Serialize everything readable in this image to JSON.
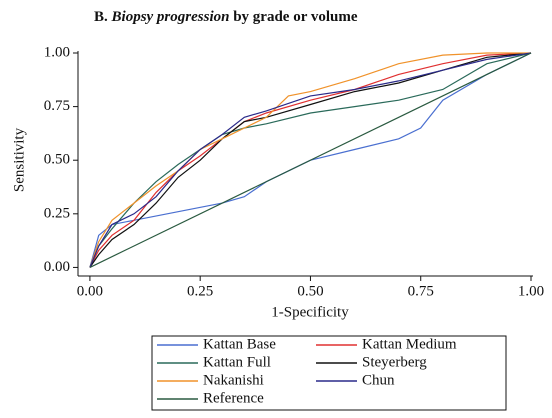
{
  "chart_data": {
    "type": "line",
    "title": [
      "B.",
      "Biopsy progression",
      "by grade or volume"
    ],
    "x_label": "1-Specificity",
    "y_label": "Sensitivity",
    "xlim": [
      -0.027,
      1.0
    ],
    "ylim": [
      -0.04,
      1.0
    ],
    "xticks": [
      {
        "value": 0,
        "label": "0.00"
      },
      {
        "value": 0.25,
        "label": "0.25"
      },
      {
        "value": 0.5,
        "label": "0.50"
      },
      {
        "value": 0.75,
        "label": "0.75"
      },
      {
        "value": 1,
        "label": "1.00"
      }
    ],
    "yticks": [
      {
        "value": 0,
        "label": "0.00"
      },
      {
        "value": 0.25,
        "label": "0.25"
      },
      {
        "value": 0.5,
        "label": "0.50"
      },
      {
        "value": 0.75,
        "label": "0.75"
      },
      {
        "value": 1,
        "label": "1.00"
      }
    ],
    "series": [
      {
        "name": "Kattan Base",
        "color": "#4a6fd0",
        "x": [
          0,
          0.02,
          0.05,
          0.1,
          0.2,
          0.3,
          0.35,
          0.4,
          0.45,
          0.5,
          0.6,
          0.7,
          0.75,
          0.8,
          0.9,
          1
        ],
        "values": [
          0,
          0.15,
          0.2,
          0.22,
          0.26,
          0.3,
          0.33,
          0.4,
          0.45,
          0.5,
          0.55,
          0.6,
          0.65,
          0.78,
          0.9,
          1
        ]
      },
      {
        "name": "Kattan Medium",
        "color": "#e03030",
        "x": [
          0,
          0.02,
          0.05,
          0.1,
          0.15,
          0.2,
          0.25,
          0.3,
          0.35,
          0.4,
          0.5,
          0.6,
          0.7,
          0.8,
          0.9,
          1
        ],
        "values": [
          0,
          0.08,
          0.15,
          0.22,
          0.35,
          0.45,
          0.52,
          0.6,
          0.68,
          0.72,
          0.78,
          0.83,
          0.9,
          0.95,
          0.99,
          1
        ]
      },
      {
        "name": "Kattan Full",
        "color": "#2a6a5a",
        "x": [
          0,
          0.02,
          0.05,
          0.1,
          0.15,
          0.2,
          0.25,
          0.3,
          0.35,
          0.4,
          0.5,
          0.6,
          0.7,
          0.8,
          0.9,
          1
        ],
        "values": [
          0,
          0.1,
          0.18,
          0.3,
          0.4,
          0.48,
          0.55,
          0.62,
          0.65,
          0.67,
          0.72,
          0.75,
          0.78,
          0.83,
          0.95,
          1
        ]
      },
      {
        "name": "Steyerberg",
        "color": "#111111",
        "x": [
          0,
          0.02,
          0.05,
          0.1,
          0.15,
          0.2,
          0.25,
          0.3,
          0.35,
          0.4,
          0.5,
          0.6,
          0.7,
          0.8,
          0.9,
          1
        ],
        "values": [
          0,
          0.06,
          0.13,
          0.2,
          0.3,
          0.42,
          0.5,
          0.6,
          0.68,
          0.7,
          0.76,
          0.82,
          0.86,
          0.92,
          0.98,
          1
        ]
      },
      {
        "name": "Nakanishi",
        "color": "#f0922a",
        "x": [
          0,
          0.02,
          0.05,
          0.1,
          0.15,
          0.2,
          0.25,
          0.3,
          0.4,
          0.45,
          0.5,
          0.6,
          0.7,
          0.8,
          0.9,
          1
        ],
        "values": [
          0,
          0.12,
          0.22,
          0.3,
          0.38,
          0.45,
          0.55,
          0.6,
          0.7,
          0.8,
          0.82,
          0.88,
          0.95,
          0.99,
          1,
          1
        ]
      },
      {
        "name": "Chun",
        "color": "#2a2a8a",
        "x": [
          0,
          0.02,
          0.05,
          0.1,
          0.15,
          0.2,
          0.25,
          0.3,
          0.35,
          0.4,
          0.5,
          0.6,
          0.7,
          0.8,
          0.9,
          1
        ],
        "values": [
          0,
          0.1,
          0.2,
          0.25,
          0.33,
          0.45,
          0.55,
          0.62,
          0.7,
          0.73,
          0.8,
          0.83,
          0.87,
          0.92,
          0.97,
          1
        ]
      },
      {
        "name": "Reference",
        "color": "#2a5a40",
        "x": [
          0,
          1
        ],
        "values": [
          0,
          1
        ]
      }
    ]
  }
}
